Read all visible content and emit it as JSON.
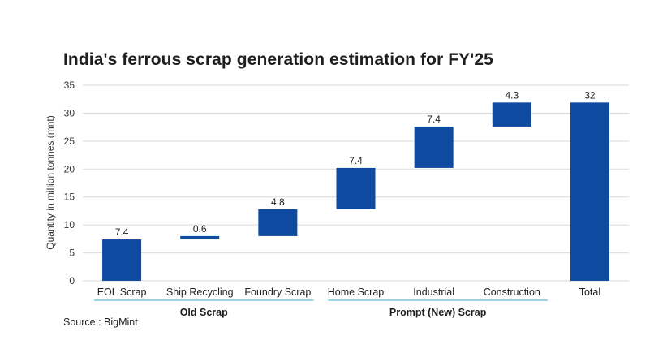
{
  "chart_data": {
    "type": "waterfall",
    "title": "India's ferrous scrap generation estimation for FY'25",
    "ylabel": "Quantity in million tonnes (mnt)",
    "ylim": [
      0,
      35
    ],
    "yticks": [
      0,
      5,
      10,
      15,
      20,
      25,
      30,
      35
    ],
    "grid": true,
    "categories": [
      "EOL Scrap",
      "Ship Recycling",
      "Foundry Scrap",
      "Home Scrap",
      "Industrial",
      "Construction",
      "Total"
    ],
    "values": [
      7.4,
      0.6,
      4.8,
      7.4,
      7.4,
      4.3,
      32
    ],
    "bar_labels": [
      "7.4",
      "0.6",
      "4.8",
      "7.4",
      "7.4",
      "4.3",
      "32"
    ],
    "bar_ranges": [
      [
        0,
        7.4
      ],
      [
        7.4,
        8.0
      ],
      [
        8.0,
        12.8
      ],
      [
        12.8,
        20.2
      ],
      [
        20.2,
        27.6
      ],
      [
        27.6,
        31.9
      ],
      [
        0,
        31.9
      ]
    ],
    "groups": [
      {
        "label": "Old Scrap",
        "categories": [
          "EOL Scrap",
          "Ship Recycling",
          "Foundry Scrap"
        ]
      },
      {
        "label": "Prompt (New) Scrap",
        "categories": [
          "Home Scrap",
          "Industrial",
          "Construction"
        ]
      }
    ],
    "source": "Source : BigMint"
  },
  "colors": {
    "bar": "#0d4aa0",
    "grid": "#d9d9d9",
    "group_line": "#7fc3d8"
  }
}
